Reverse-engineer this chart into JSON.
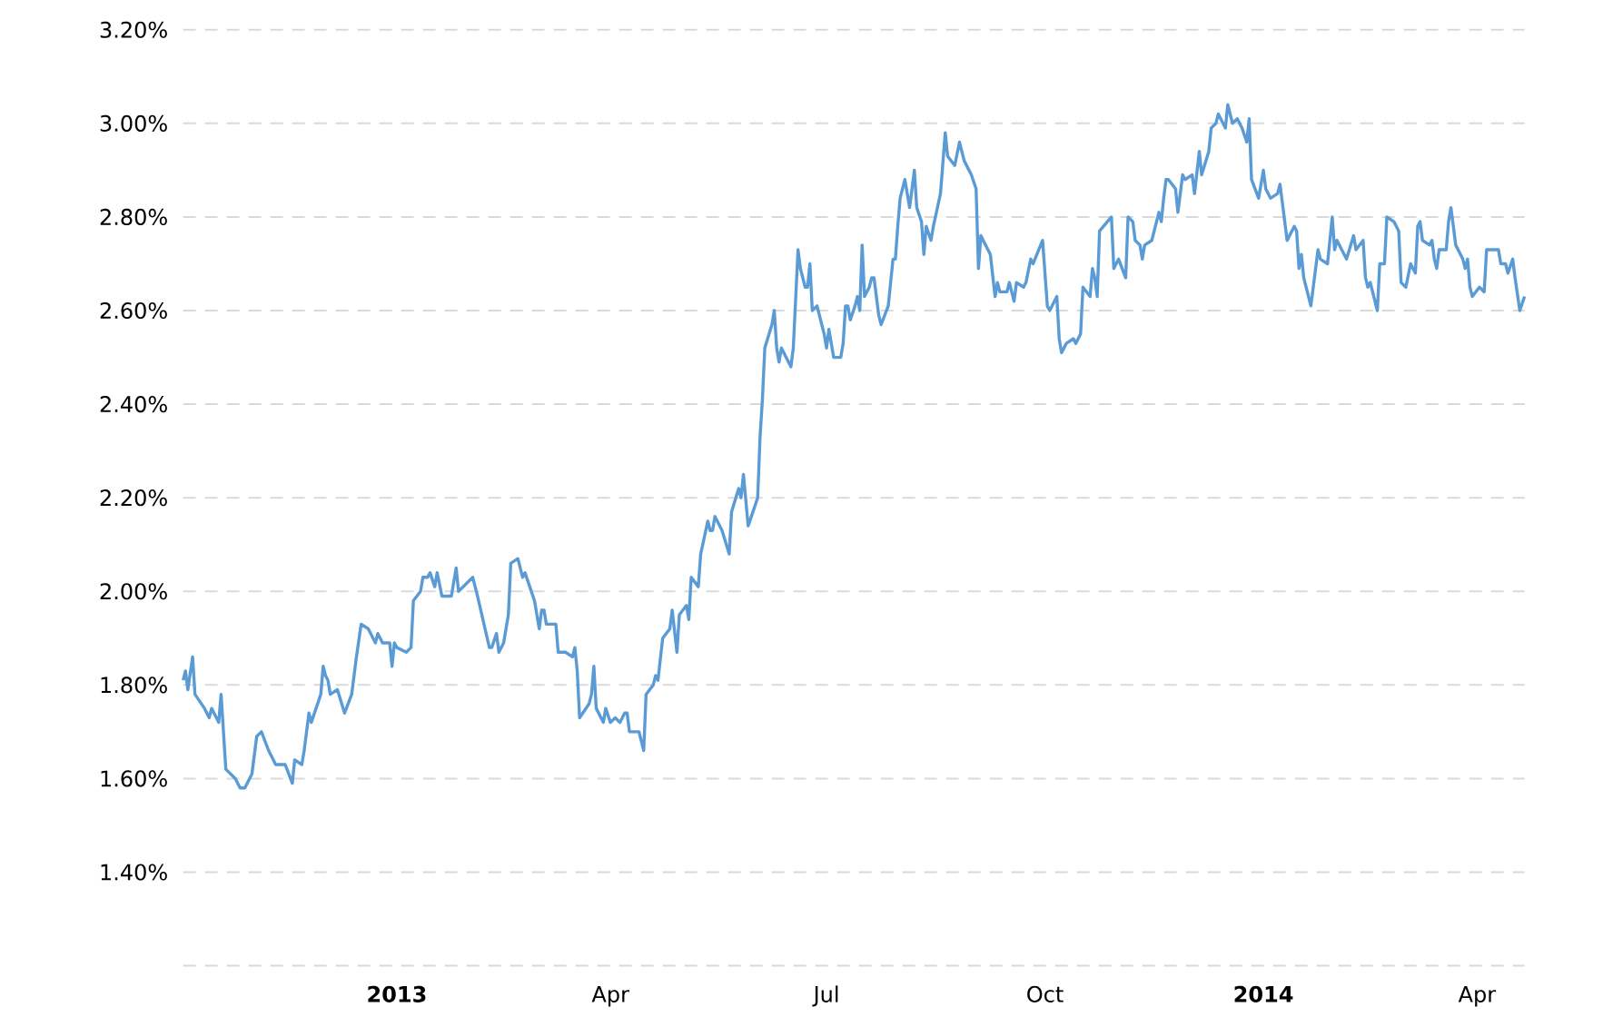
{
  "chart_data": {
    "type": "line",
    "color": "#5b9bd5",
    "grid": "y",
    "xlim": [
      "2012-10-03",
      "2014-04-21"
    ],
    "ylim": [
      1.2,
      3.2
    ],
    "xticks": [
      {
        "value": "2013-01-01",
        "label": "2013"
      },
      {
        "value": "2013-04-01",
        "label": "Apr"
      },
      {
        "value": "2013-07-01",
        "label": "Jul"
      },
      {
        "value": "2013-10-01",
        "label": "Oct"
      },
      {
        "value": "2014-01-01",
        "label": "2014"
      },
      {
        "value": "2014-04-01",
        "label": "Apr"
      }
    ],
    "yticks": [
      {
        "value": 1.2,
        "label": null
      },
      {
        "value": 1.4,
        "label": "1.40%"
      },
      {
        "value": 1.6,
        "label": "1.60%"
      },
      {
        "value": 1.8,
        "label": "1.80%"
      },
      {
        "value": 2.0,
        "label": "2.00%"
      },
      {
        "value": 2.2,
        "label": "2.20%"
      },
      {
        "value": 2.4,
        "label": "2.40%"
      },
      {
        "value": 2.6,
        "label": "2.60%"
      },
      {
        "value": 2.8,
        "label": "2.80%"
      },
      {
        "value": 3.0,
        "label": "3.00%"
      },
      {
        "value": 3.2,
        "label": "3.20%"
      }
    ],
    "x": [
      "2012-10-03",
      "2012-10-04",
      "2012-10-05",
      "2012-10-07",
      "2012-10-08",
      "2012-10-12",
      "2012-10-14",
      "2012-10-15",
      "2012-10-18",
      "2012-10-19",
      "2012-10-21",
      "2012-10-23",
      "2012-10-25",
      "2012-10-27",
      "2012-10-29",
      "2012-11-01",
      "2012-11-03",
      "2012-11-05",
      "2012-11-08",
      "2012-11-10",
      "2012-11-11",
      "2012-11-15",
      "2012-11-18",
      "2012-11-19",
      "2012-11-22",
      "2012-11-23",
      "2012-11-25",
      "2012-11-26",
      "2012-11-30",
      "2012-12-01",
      "2012-12-02",
      "2012-12-03",
      "2012-12-04",
      "2012-12-07",
      "2012-12-10",
      "2012-12-13",
      "2012-12-15",
      "2012-12-17",
      "2012-12-20",
      "2012-12-23",
      "2012-12-24",
      "2012-12-26",
      "2012-12-29",
      "2012-12-30",
      "2012-12-31",
      "2013-01-01",
      "2013-01-05",
      "2013-01-07",
      "2013-01-08",
      "2013-01-11",
      "2013-01-12",
      "2013-01-14",
      "2013-01-15",
      "2013-01-17",
      "2013-01-18",
      "2013-01-20",
      "2013-01-24",
      "2013-01-25",
      "2013-01-26",
      "2013-01-27",
      "2013-02-02",
      "2013-02-04",
      "2013-02-09",
      "2013-02-10",
      "2013-02-12",
      "2013-02-13",
      "2013-02-15",
      "2013-02-17",
      "2013-02-18",
      "2013-02-21",
      "2013-02-23",
      "2013-02-24",
      "2013-02-28",
      "2013-03-02",
      "2013-03-03",
      "2013-03-04",
      "2013-03-05",
      "2013-03-09",
      "2013-03-10",
      "2013-03-13",
      "2013-03-16",
      "2013-03-17",
      "2013-03-18",
      "2013-03-19",
      "2013-03-23",
      "2013-03-24",
      "2013-03-25",
      "2013-03-26",
      "2013-03-29",
      "2013-03-30",
      "2013-04-01",
      "2013-04-03",
      "2013-04-05",
      "2013-04-07",
      "2013-04-08",
      "2013-04-09",
      "2013-04-13",
      "2013-04-15",
      "2013-04-16",
      "2013-04-19",
      "2013-04-20",
      "2013-04-21",
      "2013-04-23",
      "2013-04-26",
      "2013-04-27",
      "2013-04-29",
      "2013-04-30",
      "2013-05-03",
      "2013-05-04",
      "2013-05-05",
      "2013-05-08",
      "2013-05-09",
      "2013-05-12",
      "2013-05-13",
      "2013-05-14",
      "2013-05-15",
      "2013-05-18",
      "2013-05-21",
      "2013-05-22",
      "2013-05-25",
      "2013-05-26",
      "2013-05-27",
      "2013-05-29",
      "2013-06-02",
      "2013-06-03",
      "2013-06-04",
      "2013-06-05",
      "2013-06-08",
      "2013-06-09",
      "2013-06-10",
      "2013-06-11",
      "2013-06-12",
      "2013-06-16",
      "2013-06-17",
      "2013-06-19",
      "2013-06-20",
      "2013-06-22",
      "2013-06-23",
      "2013-06-24",
      "2013-06-25",
      "2013-06-27",
      "2013-06-29",
      "2013-06-30",
      "2013-07-01",
      "2013-07-02",
      "2013-07-04",
      "2013-07-07",
      "2013-07-08",
      "2013-07-09",
      "2013-07-10",
      "2013-07-11",
      "2013-07-13",
      "2013-07-14",
      "2013-07-15",
      "2013-07-16",
      "2013-07-17",
      "2013-07-19",
      "2013-07-20",
      "2013-07-21",
      "2013-07-23",
      "2013-07-24",
      "2013-07-27",
      "2013-07-29",
      "2013-07-30",
      "2013-07-31",
      "2013-08-01",
      "2013-08-03",
      "2013-08-05",
      "2013-08-07",
      "2013-08-08",
      "2013-08-10",
      "2013-08-11",
      "2013-08-12",
      "2013-08-14",
      "2013-08-15",
      "2013-08-18",
      "2013-08-20",
      "2013-08-21",
      "2013-08-24",
      "2013-08-26",
      "2013-08-28",
      "2013-08-31",
      "2013-09-02",
      "2013-09-03",
      "2013-09-04",
      "2013-09-05",
      "2013-09-08",
      "2013-09-10",
      "2013-09-11",
      "2013-09-12",
      "2013-09-15",
      "2013-09-16",
      "2013-09-18",
      "2013-09-19",
      "2013-09-22",
      "2013-09-23",
      "2013-09-25",
      "2013-09-26",
      "2013-09-30",
      "2013-10-02",
      "2013-10-03",
      "2013-10-06",
      "2013-10-07",
      "2013-10-08",
      "2013-10-10",
      "2013-10-13",
      "2013-10-14",
      "2013-10-16",
      "2013-10-17",
      "2013-10-20",
      "2013-10-21",
      "2013-10-22",
      "2013-10-23",
      "2013-10-24",
      "2013-10-29",
      "2013-10-30",
      "2013-11-01",
      "2013-11-04",
      "2013-11-05",
      "2013-11-07",
      "2013-11-08",
      "2013-11-10",
      "2013-11-11",
      "2013-11-12",
      "2013-11-15",
      "2013-11-18",
      "2013-11-19",
      "2013-11-20",
      "2013-11-21",
      "2013-11-22",
      "2013-11-25",
      "2013-11-26",
      "2013-11-28",
      "2013-11-29",
      "2013-12-02",
      "2013-12-03",
      "2013-12-05",
      "2013-12-06",
      "2013-12-09",
      "2013-12-10",
      "2013-12-12",
      "2013-12-13",
      "2013-12-16",
      "2013-12-17",
      "2013-12-19",
      "2013-12-21",
      "2013-12-23",
      "2013-12-25",
      "2013-12-26",
      "2013-12-27",
      "2013-12-30",
      "2014-01-01",
      "2014-01-02",
      "2014-01-04",
      "2014-01-07",
      "2014-01-08",
      "2014-01-11",
      "2014-01-14",
      "2014-01-15",
      "2014-01-16",
      "2014-01-17",
      "2014-01-18",
      "2014-01-21",
      "2014-01-24",
      "2014-01-25",
      "2014-01-28",
      "2014-01-30",
      "2014-01-31",
      "2014-02-01",
      "2014-02-05",
      "2014-02-08",
      "2014-02-09",
      "2014-02-12",
      "2014-02-13",
      "2014-02-14",
      "2014-02-15",
      "2014-02-18",
      "2014-02-19",
      "2014-02-21",
      "2014-02-22",
      "2014-02-25",
      "2014-02-27",
      "2014-02-28",
      "2014-03-02",
      "2014-03-04",
      "2014-03-06",
      "2014-03-07",
      "2014-03-08",
      "2014-03-09",
      "2014-03-12",
      "2014-03-13",
      "2014-03-14",
      "2014-03-15",
      "2014-03-16",
      "2014-03-19",
      "2014-03-20",
      "2014-03-21",
      "2014-03-23",
      "2014-03-26",
      "2014-03-27",
      "2014-03-28",
      "2014-03-29",
      "2014-03-30",
      "2014-04-02",
      "2014-04-04",
      "2014-04-05",
      "2014-04-10",
      "2014-04-11",
      "2014-04-13",
      "2014-04-14",
      "2014-04-16",
      "2014-04-17",
      "2014-04-19",
      "2014-04-21"
    ],
    "values": [
      1.81,
      1.83,
      1.79,
      1.86,
      1.78,
      1.75,
      1.73,
      1.75,
      1.72,
      1.78,
      1.62,
      1.61,
      1.6,
      1.58,
      1.58,
      1.61,
      1.69,
      1.7,
      1.66,
      1.64,
      1.63,
      1.63,
      1.59,
      1.64,
      1.63,
      1.66,
      1.74,
      1.72,
      1.78,
      1.84,
      1.82,
      1.81,
      1.78,
      1.79,
      1.74,
      1.78,
      1.86,
      1.93,
      1.92,
      1.89,
      1.91,
      1.89,
      1.89,
      1.84,
      1.89,
      1.88,
      1.87,
      1.88,
      1.98,
      2.0,
      2.03,
      2.03,
      2.04,
      2.01,
      2.04,
      1.99,
      1.99,
      2.02,
      2.05,
      2.0,
      2.03,
      1.99,
      1.88,
      1.88,
      1.91,
      1.87,
      1.89,
      1.95,
      2.06,
      2.07,
      2.03,
      2.04,
      1.98,
      1.92,
      1.96,
      1.96,
      1.93,
      1.93,
      1.87,
      1.87,
      1.86,
      1.88,
      1.83,
      1.73,
      1.76,
      1.78,
      1.84,
      1.75,
      1.72,
      1.75,
      1.72,
      1.73,
      1.72,
      1.74,
      1.74,
      1.7,
      1.7,
      1.66,
      1.78,
      1.8,
      1.82,
      1.81,
      1.9,
      1.92,
      1.96,
      1.87,
      1.95,
      1.97,
      1.94,
      2.03,
      2.01,
      2.08,
      2.15,
      2.13,
      2.13,
      2.16,
      2.13,
      2.08,
      2.17,
      2.22,
      2.2,
      2.25,
      2.14,
      2.2,
      2.33,
      2.41,
      2.52,
      2.57,
      2.6,
      2.52,
      2.49,
      2.52,
      2.48,
      2.52,
      2.73,
      2.69,
      2.65,
      2.65,
      2.7,
      2.6,
      2.61,
      2.57,
      2.55,
      2.52,
      2.56,
      2.5,
      2.5,
      2.53,
      2.61,
      2.61,
      2.58,
      2.61,
      2.63,
      2.6,
      2.74,
      2.63,
      2.65,
      2.67,
      2.67,
      2.59,
      2.57,
      2.61,
      2.71,
      2.71,
      2.78,
      2.84,
      2.88,
      2.82,
      2.9,
      2.82,
      2.79,
      2.72,
      2.78,
      2.75,
      2.78,
      2.85,
      2.98,
      2.93,
      2.91,
      2.96,
      2.92,
      2.89,
      2.86,
      2.69,
      2.76,
      2.75,
      2.72,
      2.63,
      2.66,
      2.64,
      2.64,
      2.66,
      2.62,
      2.66,
      2.65,
      2.66,
      2.71,
      2.7,
      2.75,
      2.61,
      2.6,
      2.63,
      2.54,
      2.51,
      2.53,
      2.54,
      2.53,
      2.55,
      2.65,
      2.63,
      2.69,
      2.67,
      2.63,
      2.77,
      2.8,
      2.69,
      2.71,
      2.67,
      2.8,
      2.79,
      2.75,
      2.74,
      2.71,
      2.74,
      2.75,
      2.81,
      2.79,
      2.84,
      2.88,
      2.88,
      2.86,
      2.81,
      2.89,
      2.88,
      2.89,
      2.85,
      2.94,
      2.89,
      2.94,
      2.99,
      3.0,
      3.02,
      2.99,
      3.04,
      3.0,
      3.01,
      2.99,
      2.96,
      3.01,
      2.88,
      2.84,
      2.9,
      2.86,
      2.84,
      2.85,
      2.87,
      2.75,
      2.78,
      2.77,
      2.69,
      2.72,
      2.67,
      2.61,
      2.73,
      2.71,
      2.7,
      2.8,
      2.73,
      2.75,
      2.71,
      2.76,
      2.73,
      2.75,
      2.67,
      2.65,
      2.66,
      2.6,
      2.7,
      2.7,
      2.8,
      2.79,
      2.77,
      2.66,
      2.65,
      2.7,
      2.68,
      2.78,
      2.79,
      2.75,
      2.74,
      2.75,
      2.71,
      2.69,
      2.73,
      2.73,
      2.79,
      2.82,
      2.74,
      2.71,
      2.69,
      2.71,
      2.65,
      2.63,
      2.65,
      2.64,
      2.73,
      2.73,
      2.7,
      2.7,
      2.68,
      2.71,
      2.67,
      2.6,
      2.63
    ]
  }
}
